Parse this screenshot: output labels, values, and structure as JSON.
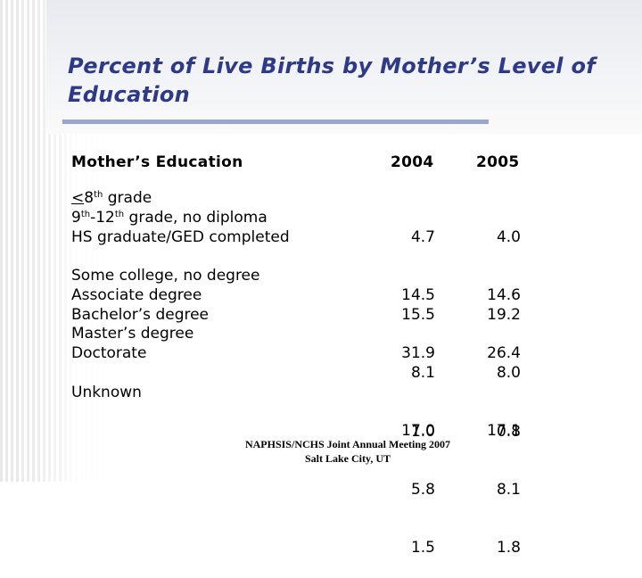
{
  "title": "Percent of Live Births by Mother’s Level of Education",
  "table": {
    "headers": {
      "education": "Mother’s Education",
      "y2004": "2004",
      "y2005": "2005"
    },
    "groups": [
      {
        "rows": [
          {
            "label": "≤8th grade",
            "v2004": "4.7",
            "v2005": "4.0"
          },
          {
            "label": "9th-12th grade, no diploma",
            "v2004": "14.5",
            "v2005": "14.6"
          },
          {
            "label": "HS graduate/GED completed",
            "v2004": "31.9",
            "v2005": "26.4"
          }
        ]
      },
      {
        "rows": [
          {
            "label": "Some college, no degree",
            "v2004": "15.5",
            "v2005": "19.2"
          },
          {
            "label": "Associate degree",
            "v2004": "8.1",
            "v2005": "8.0"
          },
          {
            "label": "Bachelor’s degree",
            "v2004": "17.0",
            "v2005": "17.1"
          },
          {
            "label": "Master’s degree",
            "v2004": "5.8",
            "v2005": "8.1"
          },
          {
            "label": "Doctorate",
            "v2004": "1.5",
            "v2005": "1.8"
          }
        ]
      },
      {
        "rows": [
          {
            "label": "Unknown",
            "v2004": "1.0",
            "v2005": "0.8"
          }
        ]
      }
    ]
  },
  "footer": {
    "line1": "NAPHSIS/NCHS Joint Annual Meeting 2007",
    "line2": "Salt Lake City, UT"
  }
}
